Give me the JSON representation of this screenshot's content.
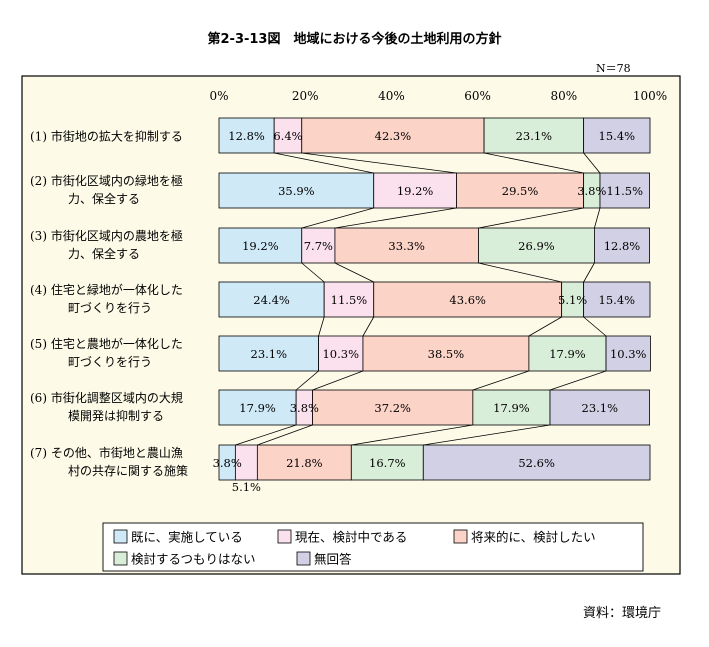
{
  "title": "第2-3-13図　地域における今後の土地利用の方針",
  "n_label": "N＝78",
  "source": "資料：環境庁",
  "chart_data": {
    "type": "bar",
    "orientation": "horizontal",
    "stacked": true,
    "x_ticks": [
      "0%",
      "20%",
      "40%",
      "60%",
      "80%",
      "100%"
    ],
    "xlim": [
      0,
      100
    ],
    "legend_position": "bottom",
    "categories": [
      [
        "(1) 市街地の拡大を抑制する"
      ],
      [
        "(2) 市街化区域内の緑地を極",
        "力、保全する"
      ],
      [
        "(3) 市街化区域内の農地を極",
        "力、保全する"
      ],
      [
        "(4) 住宅と緑地が一体化した",
        "町づくりを行う"
      ],
      [
        "(5) 住宅と農地が一体化した",
        "町づくりを行う"
      ],
      [
        "(6) 市街化調整区域内の大規",
        "模開発は抑制する"
      ],
      [
        "(7) その他、市街地と農山漁",
        "村の共存に関する施策"
      ]
    ],
    "series": [
      {
        "name": "既に、実施している",
        "color": "#cfe9f7",
        "values": [
          12.8,
          35.9,
          19.2,
          24.4,
          23.1,
          17.9,
          3.8
        ],
        "labels": [
          "12.8%",
          "35.9%",
          "19.2%",
          "24.4%",
          "23.1%",
          "17.9%",
          "3.8%"
        ]
      },
      {
        "name": "現在、検討中である",
        "color": "#fbe1ee",
        "values": [
          6.4,
          19.2,
          7.7,
          11.5,
          10.3,
          3.8,
          5.1
        ],
        "labels": [
          "6.4%",
          "19.2%",
          "7.7%",
          "11.5%",
          "10.3%",
          "3.8%",
          "5.1%"
        ]
      },
      {
        "name": "将来的に、検討したい",
        "color": "#fbd3c7",
        "values": [
          42.3,
          29.5,
          33.3,
          43.6,
          38.5,
          37.2,
          21.8
        ],
        "labels": [
          "42.3%",
          "29.5%",
          "33.3%",
          "43.6%",
          "38.5%",
          "37.2%",
          "21.8%"
        ]
      },
      {
        "name": "検討するつもりはない",
        "color": "#d9eed9",
        "values": [
          23.1,
          3.8,
          26.9,
          5.1,
          17.9,
          17.9,
          16.7
        ],
        "labels": [
          "23.1%",
          "3.8%",
          "26.9%",
          "5.1%",
          "17.9%",
          "17.9%",
          "16.7%"
        ]
      },
      {
        "name": "無回答",
        "color": "#d2d0e5",
        "values": [
          15.4,
          11.5,
          12.8,
          15.4,
          10.3,
          23.1,
          52.6
        ],
        "labels": [
          "15.4%",
          "11.5%",
          "12.8%",
          "15.4%",
          "10.3%",
          "23.1%",
          "52.6%"
        ]
      }
    ]
  }
}
